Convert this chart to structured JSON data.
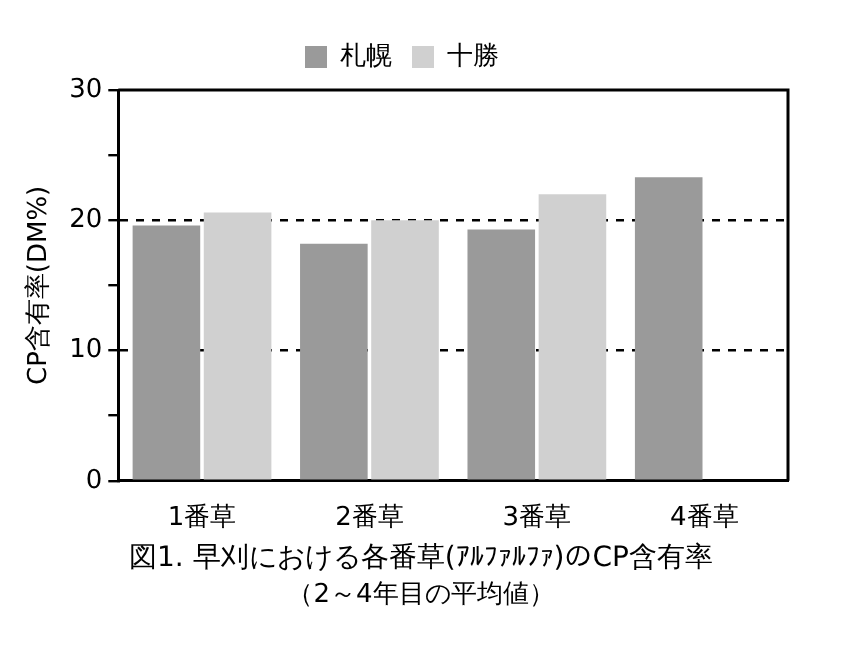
{
  "chart_data": {
    "type": "bar",
    "title": "図1. 早刈における各番草(ｱﾙﾌｧﾙﾌｧ)のCP含有率",
    "subtitle": "（2～4年目の平均値）",
    "ylabel": "CP含有率(DM%)",
    "categories": [
      "1番草",
      "2番草",
      "3番草",
      "4番草"
    ],
    "series": [
      {
        "name": "札幌",
        "color": "#9a9a9a",
        "values": [
          19.6,
          18.2,
          19.3,
          23.3
        ]
      },
      {
        "name": "十勝",
        "color": "#d0d0d0",
        "values": [
          20.6,
          20.0,
          22.0,
          null
        ]
      }
    ],
    "ylim": [
      0,
      30
    ],
    "yticks": [
      0,
      {
        "value": 5,
        "label": null
      },
      10,
      {
        "value": 15,
        "label": null
      },
      20,
      {
        "value": 25,
        "label": null
      },
      30
    ],
    "grid": "y",
    "legend": "top"
  }
}
